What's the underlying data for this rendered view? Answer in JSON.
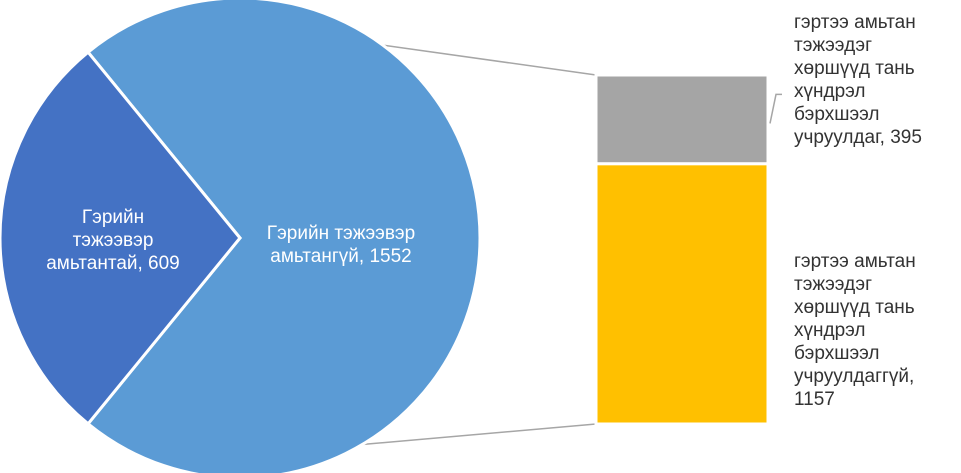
{
  "chart_data": {
    "type": "pie",
    "subtype": "bar-of-pie",
    "title": "",
    "pie": {
      "slices": [
        {
          "label": [
            "Гэрийн тэжээвэр",
            "амьтангүй, 1552"
          ],
          "name": "Гэрийн тэжээвэр амьтангүй",
          "value": 1552,
          "color": "#5b9bd5"
        },
        {
          "label": [
            "Гэрийн",
            "тэжээвэр",
            "амьтантай, 609"
          ],
          "name": "Гэрийн тэжээвэр амьтантай",
          "value": 609,
          "color": "#4472c4"
        }
      ]
    },
    "bar": {
      "segments": [
        {
          "label": [
            "гэртээ амьтан",
            "тэжээдэг",
            "хөршүүд тань",
            "хүндрэл",
            "бэрхшээл",
            "учруулдаг, 395"
          ],
          "value": 395,
          "color": "#a5a5a5"
        },
        {
          "label": [
            "гэртээ амьтан",
            "тэжээдэг",
            "хөршүүд тань",
            "хүндрэл",
            "бэрхшээл",
            "учруулдаггүй,",
            "1157"
          ],
          "value": 1157,
          "color": "#ffc000"
        }
      ]
    },
    "legend": "none"
  }
}
